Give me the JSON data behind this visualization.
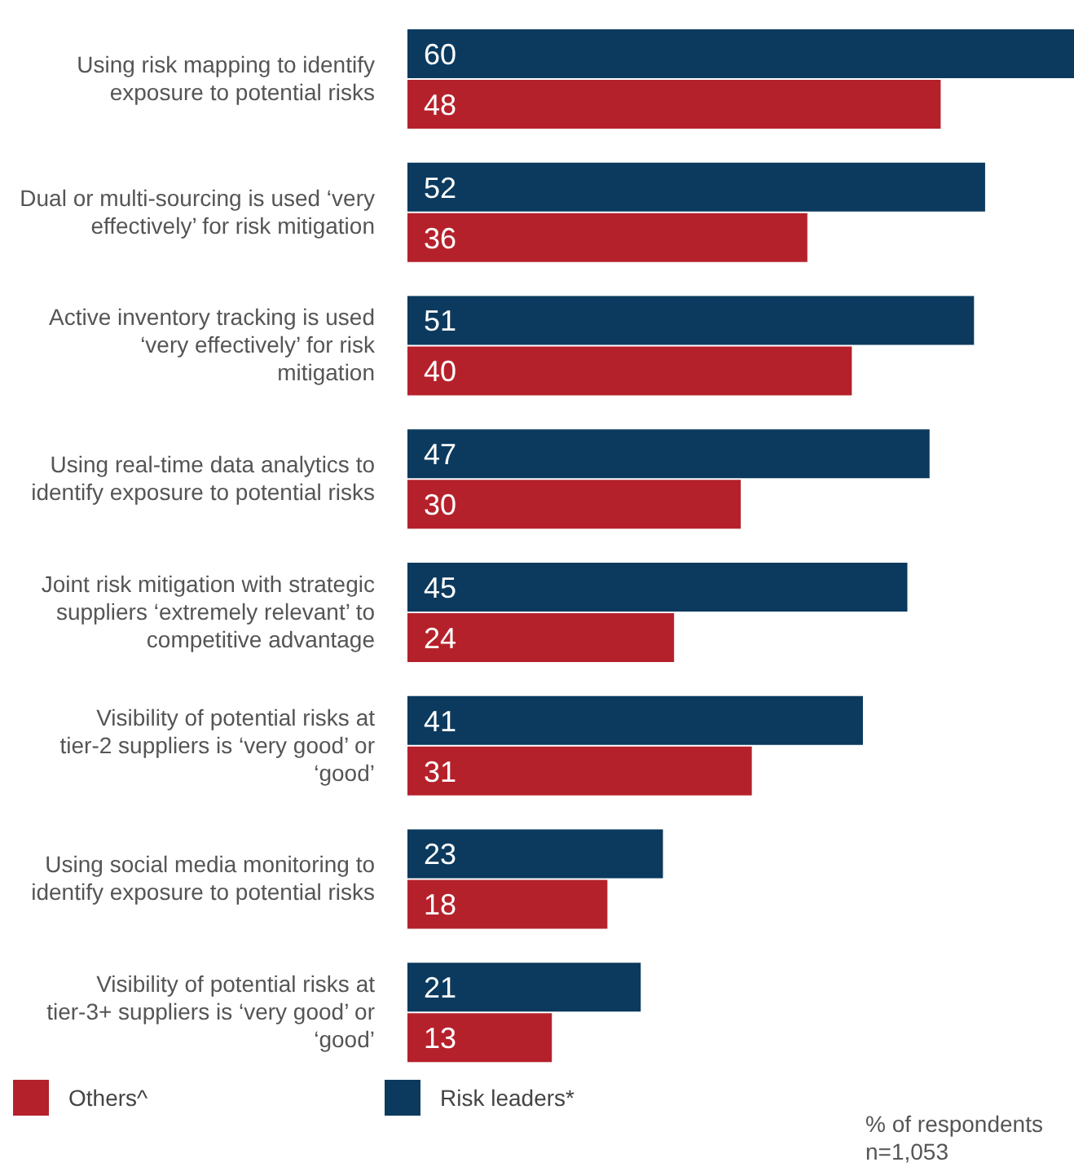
{
  "chart_data": {
    "type": "bar",
    "orientation": "horizontal",
    "categories": [
      "Using risk mapping to identify exposure to potential risks",
      "Dual or multi-sourcing is used ‘very effectively’ for risk mitigation",
      "Active inventory tracking is used ‘very effectively’ for risk mitigation",
      "Using real-time data analytics to identify exposure to potential risks",
      "Joint risk mitigation with strategic suppliers ‘extremely relevant’ to competitive advantage",
      "Visibility of potential risks at tier-2 suppliers is ‘very good’ or ‘good’",
      "Using social media monitoring to identify exposure to potential risks",
      "Visibility of potential risks at tier-3+ suppliers is ‘very good’ or ‘good’"
    ],
    "series": [
      {
        "name": "Risk leaders*",
        "color": "#0b3a5e",
        "values": [
          60,
          52,
          51,
          47,
          45,
          41,
          23,
          21
        ]
      },
      {
        "name": "Others^",
        "color": "#b5212b",
        "values": [
          48,
          36,
          40,
          30,
          24,
          31,
          18,
          13
        ]
      }
    ],
    "data_labels": true,
    "legend": "bottom",
    "grid": false,
    "annotations": [
      "% of respondents",
      "n=1,053"
    ]
  }
}
